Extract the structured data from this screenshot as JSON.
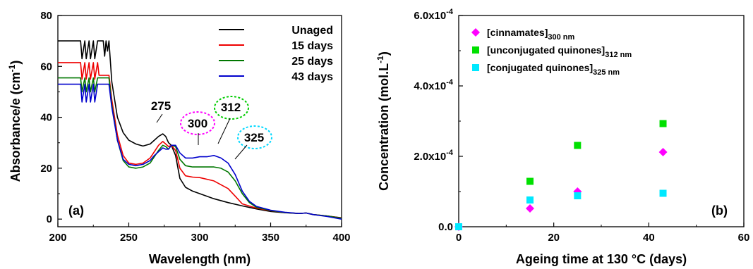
{
  "chart_data": [
    {
      "panel": "(a)",
      "type": "line",
      "xlabel": "Wavelength (nm)",
      "ylabel_main": "Absorbance/e (cm",
      "ylabel_sup": "-1",
      "ylabel_end": ")",
      "xlim": [
        200,
        400
      ],
      "ylim": [
        -3,
        80
      ],
      "xticks": [
        200,
        250,
        300,
        350,
        400
      ],
      "yticks": [
        0,
        20,
        40,
        60,
        80
      ],
      "legend_position": "top-right",
      "peak_labels": [
        {
          "text": "275",
          "x": 275,
          "color": "#000000",
          "circled": false
        },
        {
          "text": "300",
          "x": 300,
          "color": "#ff00ff",
          "circled": true
        },
        {
          "text": "312",
          "x": 312,
          "color": "#00cc00",
          "circled": true
        },
        {
          "text": "325",
          "x": 325,
          "color": "#00d8ff",
          "circled": true
        }
      ],
      "series": [
        {
          "name": "Unaged",
          "color": "#000000",
          "x": [
            200,
            216,
            217,
            219,
            220,
            222,
            223,
            225,
            226,
            228,
            229,
            232,
            233,
            234,
            235,
            236,
            238,
            242,
            246,
            250,
            255,
            260,
            265,
            268,
            271,
            274,
            276,
            278,
            280,
            283,
            286,
            290,
            295,
            300,
            310,
            320,
            330,
            340,
            350,
            360,
            370,
            375,
            380,
            390,
            400
          ],
          "y": [
            70,
            70,
            63,
            70,
            63,
            70,
            63,
            70,
            63,
            70,
            70,
            70,
            64,
            70,
            66,
            70,
            54,
            40,
            34,
            31,
            29.5,
            28.7,
            29.5,
            31,
            32.5,
            33.5,
            32.5,
            30,
            29,
            25,
            16,
            12.5,
            11,
            10,
            8,
            6.5,
            5.2,
            4,
            3,
            2.5,
            2.2,
            2.4,
            1.8,
            1.2,
            0.5
          ]
        },
        {
          "name": "15 days",
          "color": "#ee0000",
          "x": [
            200,
            216,
            217,
            219,
            220,
            222,
            223,
            225,
            226,
            228,
            229,
            232,
            233,
            234,
            235,
            236,
            238,
            242,
            246,
            250,
            255,
            260,
            265,
            268,
            271,
            274,
            276,
            278,
            280,
            283,
            286,
            290,
            295,
            300,
            310,
            320,
            325,
            330,
            340,
            350,
            360,
            370,
            375,
            380,
            390,
            400
          ],
          "y": [
            61.5,
            61.5,
            55,
            61.5,
            55,
            61.5,
            55,
            61.5,
            55,
            61.5,
            56.5,
            56.5,
            56.5,
            56.5,
            56.5,
            56.5,
            47,
            33,
            25,
            22,
            21.5,
            22,
            24,
            26.5,
            29,
            30.5,
            29.5,
            28.5,
            29,
            27,
            20,
            17,
            16.5,
            16.3,
            15,
            12,
            9,
            6,
            4.3,
            3.3,
            2.6,
            2.2,
            2.4,
            1.8,
            1.2,
            0.4
          ]
        },
        {
          "name": "25 days",
          "color": "#007700",
          "x": [
            200,
            216,
            217,
            219,
            220,
            222,
            223,
            225,
            226,
            228,
            229,
            232,
            233,
            234,
            235,
            236,
            238,
            242,
            246,
            250,
            255,
            260,
            265,
            268,
            271,
            274,
            276,
            278,
            280,
            283,
            286,
            290,
            295,
            300,
            305,
            310,
            315,
            320,
            325,
            330,
            335,
            340,
            350,
            360,
            370,
            375,
            380,
            390,
            400
          ],
          "y": [
            55.5,
            55.5,
            50,
            55.5,
            50,
            55.5,
            50,
            55.5,
            50,
            55.5,
            55.5,
            55.5,
            55.5,
            55.5,
            55.5,
            55.5,
            45,
            31,
            23,
            20.5,
            20,
            20.5,
            22,
            24.5,
            27,
            29,
            28.5,
            27.5,
            29,
            28.5,
            23.5,
            21,
            20.5,
            20.5,
            20.5,
            20.5,
            20,
            18.5,
            15,
            10,
            6.5,
            4.6,
            3.4,
            2.6,
            2.2,
            2.4,
            1.8,
            1.2,
            0.3
          ]
        },
        {
          "name": "43 days",
          "color": "#0000cc",
          "x": [
            200,
            216,
            217,
            219,
            220,
            222,
            223,
            225,
            226,
            228,
            229,
            232,
            233,
            234,
            235,
            236,
            238,
            242,
            246,
            250,
            255,
            260,
            265,
            268,
            271,
            274,
            276,
            278,
            280,
            283,
            286,
            290,
            295,
            300,
            305,
            310,
            315,
            320,
            325,
            330,
            335,
            340,
            350,
            360,
            370,
            375,
            380,
            390,
            400
          ],
          "y": [
            53,
            53,
            46,
            53,
            46,
            53,
            46,
            53,
            46,
            53,
            53,
            53,
            53,
            53,
            53,
            53,
            44,
            31,
            23.5,
            21.5,
            21,
            21.5,
            23,
            25,
            26.5,
            28,
            27.5,
            27.5,
            29,
            29,
            26,
            24,
            24,
            24.5,
            24.5,
            25,
            24,
            22,
            17.5,
            11,
            7,
            5,
            3.5,
            2.7,
            2.2,
            2.4,
            1.8,
            1,
            0
          ]
        }
      ]
    },
    {
      "panel": "(b)",
      "type": "scatter",
      "xlabel": "Ageing time at 130 °C (days)",
      "ylabel_main": "Concentration (mol.L",
      "ylabel_sup": "-1",
      "ylabel_end": ")",
      "xlim": [
        0,
        60
      ],
      "ylim": [
        0,
        0.0006
      ],
      "xticks": [
        0,
        20,
        40,
        60
      ],
      "yticks": [
        {
          "value": 0,
          "label": "0.0"
        },
        {
          "value": 0.0002,
          "label": "2.0x10",
          "exp": "-4"
        },
        {
          "value": 0.0004,
          "label": "4.0x10",
          "exp": "-4"
        },
        {
          "value": 0.0006,
          "label": "6.0x10",
          "exp": "-4"
        }
      ],
      "legend_position": "top-left",
      "series": [
        {
          "name": "[cinnamates]",
          "sub": "300 nm",
          "marker": "diamond",
          "color": "#ff00ff",
          "x": [
            0,
            15,
            25,
            43
          ],
          "y": [
            0,
            5.2e-05,
            0.0001,
            0.000212
          ]
        },
        {
          "name": "[unconjugated quinones]",
          "sub": "312 nm",
          "marker": "square",
          "color": "#00e000",
          "x": [
            0,
            15,
            25,
            43
          ],
          "y": [
            0,
            0.000129,
            0.000231,
            0.000293
          ]
        },
        {
          "name": "[conjugated quinones]",
          "sub": "325 nm",
          "marker": "square",
          "color": "#00e8ff",
          "x": [
            0,
            15,
            25,
            43
          ],
          "y": [
            0,
            7.6e-05,
            8.8e-05,
            9.5e-05
          ]
        }
      ]
    }
  ]
}
